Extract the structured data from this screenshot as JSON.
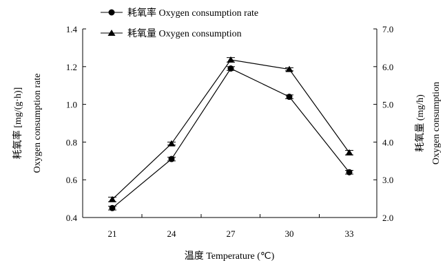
{
  "chart_data": {
    "type": "line",
    "title": "",
    "x": [
      "21",
      "24",
      "27",
      "30",
      "33"
    ],
    "xlabel": "温度 Temperature (℃)",
    "left_axis": {
      "label_cn": "耗氧率 [mg/(g·h)]",
      "label_en": "Oxygen consumption rate",
      "range": [
        0.4,
        1.4
      ],
      "ticks": [
        "0.4",
        "0.6",
        "0.8",
        "1.0",
        "1.2",
        "1.4"
      ]
    },
    "right_axis": {
      "label_cn": "耗氧量 (mg/h)",
      "label_en": "Oxygen consumption",
      "range": [
        2.0,
        7.0
      ],
      "ticks": [
        "2.0",
        "3.0",
        "4.0",
        "5.0",
        "6.0",
        "7.0"
      ]
    },
    "series": [
      {
        "name": "耗氧率 Oxygen consumption rate",
        "marker": "circle",
        "axis": "left",
        "values": [
          0.45,
          0.71,
          1.19,
          1.04,
          0.64
        ],
        "errors": [
          0.01,
          0.01,
          0.01,
          0.01,
          0.01
        ]
      },
      {
        "name": "耗氧量 Oxygen consumption",
        "marker": "triangle",
        "axis": "right",
        "values": [
          2.48,
          3.96,
          6.18,
          5.93,
          3.72
        ],
        "errors": [
          0.06,
          0.04,
          0.06,
          0.04,
          0.06
        ]
      }
    ],
    "legend_position": "top-left",
    "grid": false
  }
}
